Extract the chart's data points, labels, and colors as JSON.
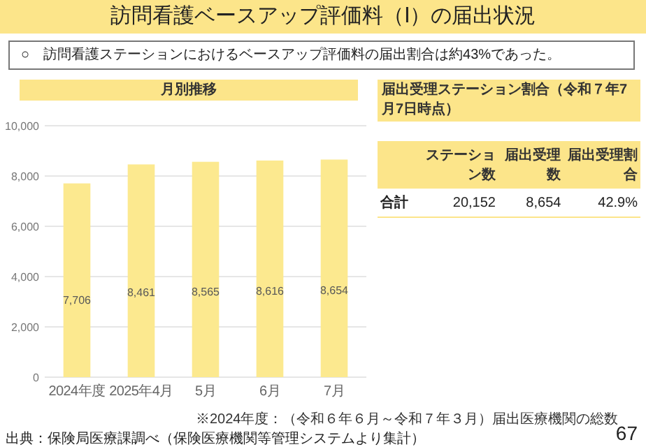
{
  "chart_data": [
    {
      "type": "bar",
      "title": "訪問看護ベースアップ評価料（Ⅰ）の届出状況",
      "subtitle": "月別推移",
      "categories": [
        "2024年度",
        "2025年4月",
        "5月",
        "6月",
        "7月"
      ],
      "values": [
        7706,
        8461,
        8565,
        8616,
        8654
      ],
      "color": "#fce98f",
      "ylim": [
        0,
        10000
      ],
      "yticks": [
        {
          "value": 0,
          "label": "0"
        },
        {
          "value": 2000,
          "label": "2,000"
        },
        {
          "value": 4000,
          "label": "4,000"
        },
        {
          "value": 6000,
          "label": "6,000"
        },
        {
          "value": 8000,
          "label": "8,000"
        },
        {
          "value": 10000,
          "label": "10,000"
        }
      ],
      "grid": "y",
      "value_labels": [
        "7,706",
        "8,461",
        "8,565",
        "8,616",
        "8,654"
      ],
      "annotations": [
        "○　訪問看護ステーションにおけるベースアップ評価料の届出割合は約43%であった。",
        "※2024年度：（令和６年６月～令和７年３月）届出医療機関の総数",
        "出典：保険局医療課調べ（保険医療機関等管理システムより集計）",
        "67"
      ]
    },
    {
      "type": "other",
      "title": "届出受理ステーション割合（令和７年7月7日時点）",
      "annotations": [
        "ステーション数",
        "届出受理数",
        "届出受理割合",
        "合計",
        "20,152",
        "8,654",
        "42.9%"
      ]
    }
  ]
}
